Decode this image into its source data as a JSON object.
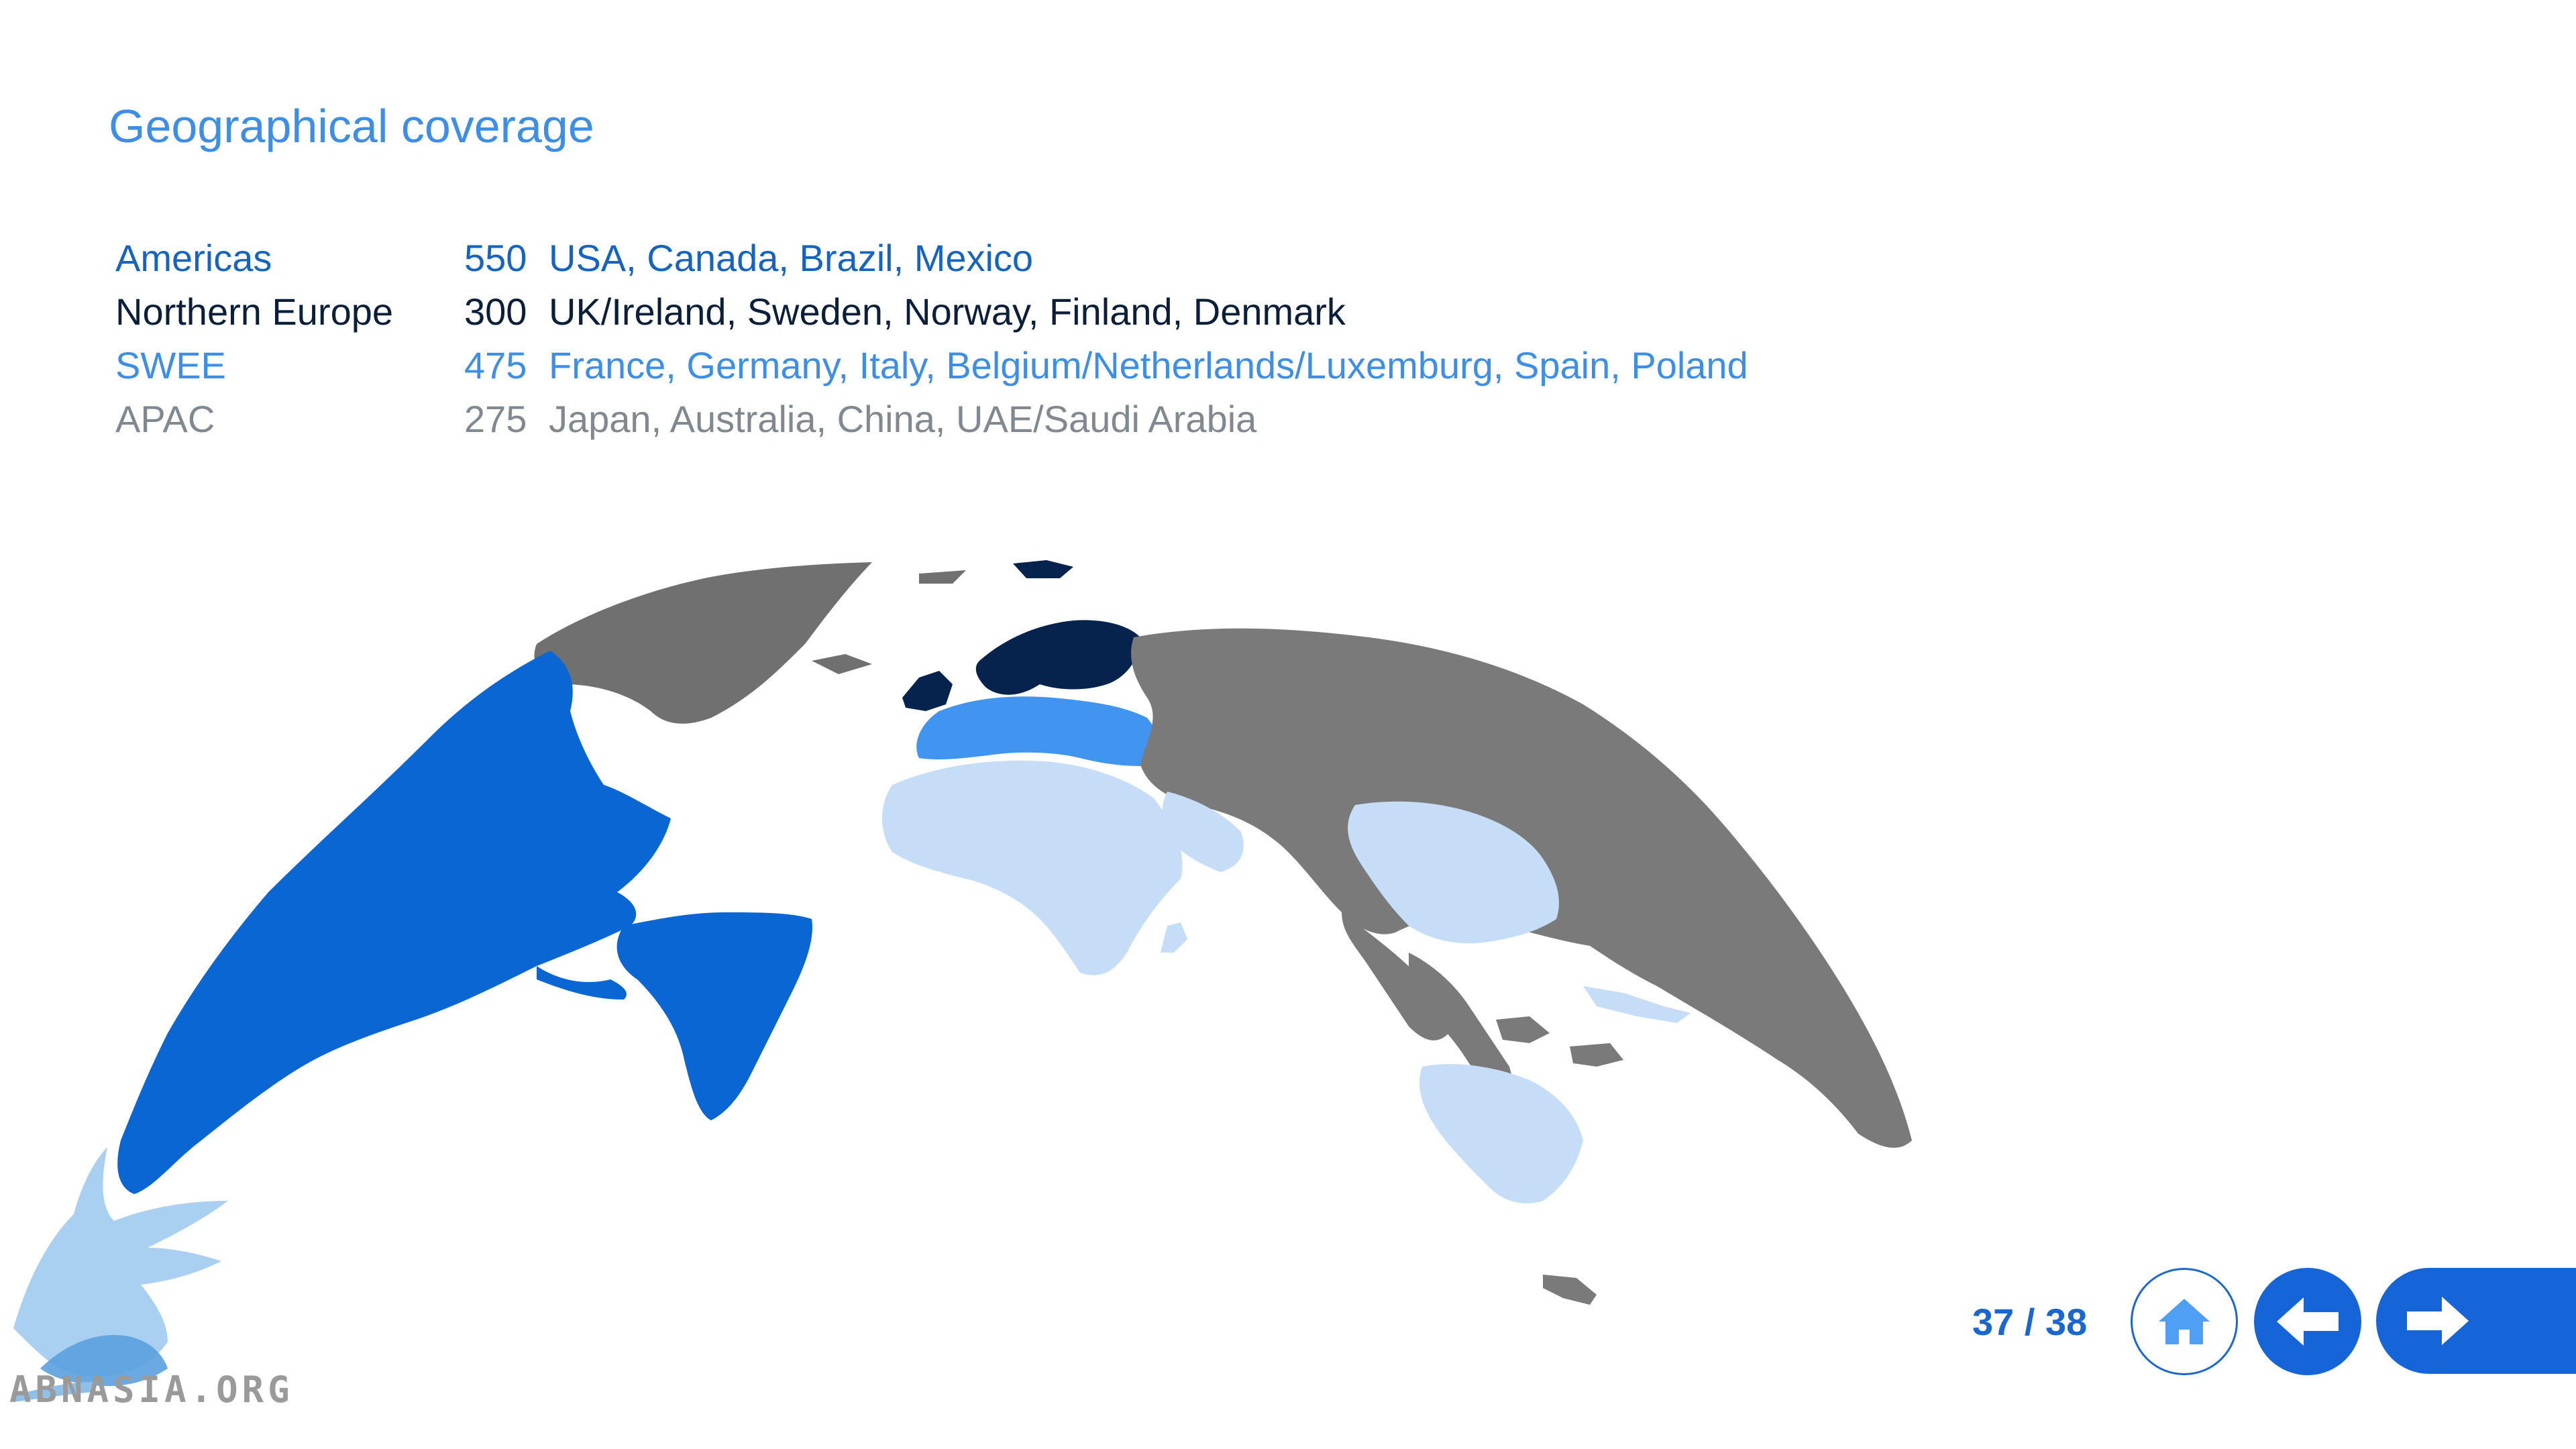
{
  "page": {
    "title": "Geographical coverage"
  },
  "regions": [
    {
      "name": "Americas",
      "count": "550",
      "countries": "USA, Canada, Brazil, Mexico",
      "color": "#1565c0"
    },
    {
      "name": "Northern Europe",
      "count": "300",
      "countries": "UK/Ireland, Sweden, Norway, Finland, Denmark",
      "color": "#0b1f3a"
    },
    {
      "name": "SWEE",
      "count": "475",
      "countries": "France, Germany, Italy, Belgium/Netherlands/Luxemburg, Spain, Poland",
      "color": "#3d8ee6"
    },
    {
      "name": "APAC",
      "count": "275",
      "countries": "Japan, Australia, China, UAE/Saudi Arabia",
      "color": "#808890"
    }
  ],
  "map_colors": {
    "americas": "#0a66d2",
    "northern_europe": "#06234d",
    "swee": "#3f95f0",
    "apac": "#c6ddf8",
    "other": "#7a7a7a"
  },
  "pager": {
    "current": "37",
    "separator": "/",
    "total": "38"
  },
  "nav": {
    "home_icon": "home-icon",
    "prev_icon": "arrow-left-icon",
    "next_icon": "arrow-right-icon"
  },
  "watermark": {
    "text": "ABNASIA.ORG",
    "icon": "griffin-logo-icon"
  }
}
